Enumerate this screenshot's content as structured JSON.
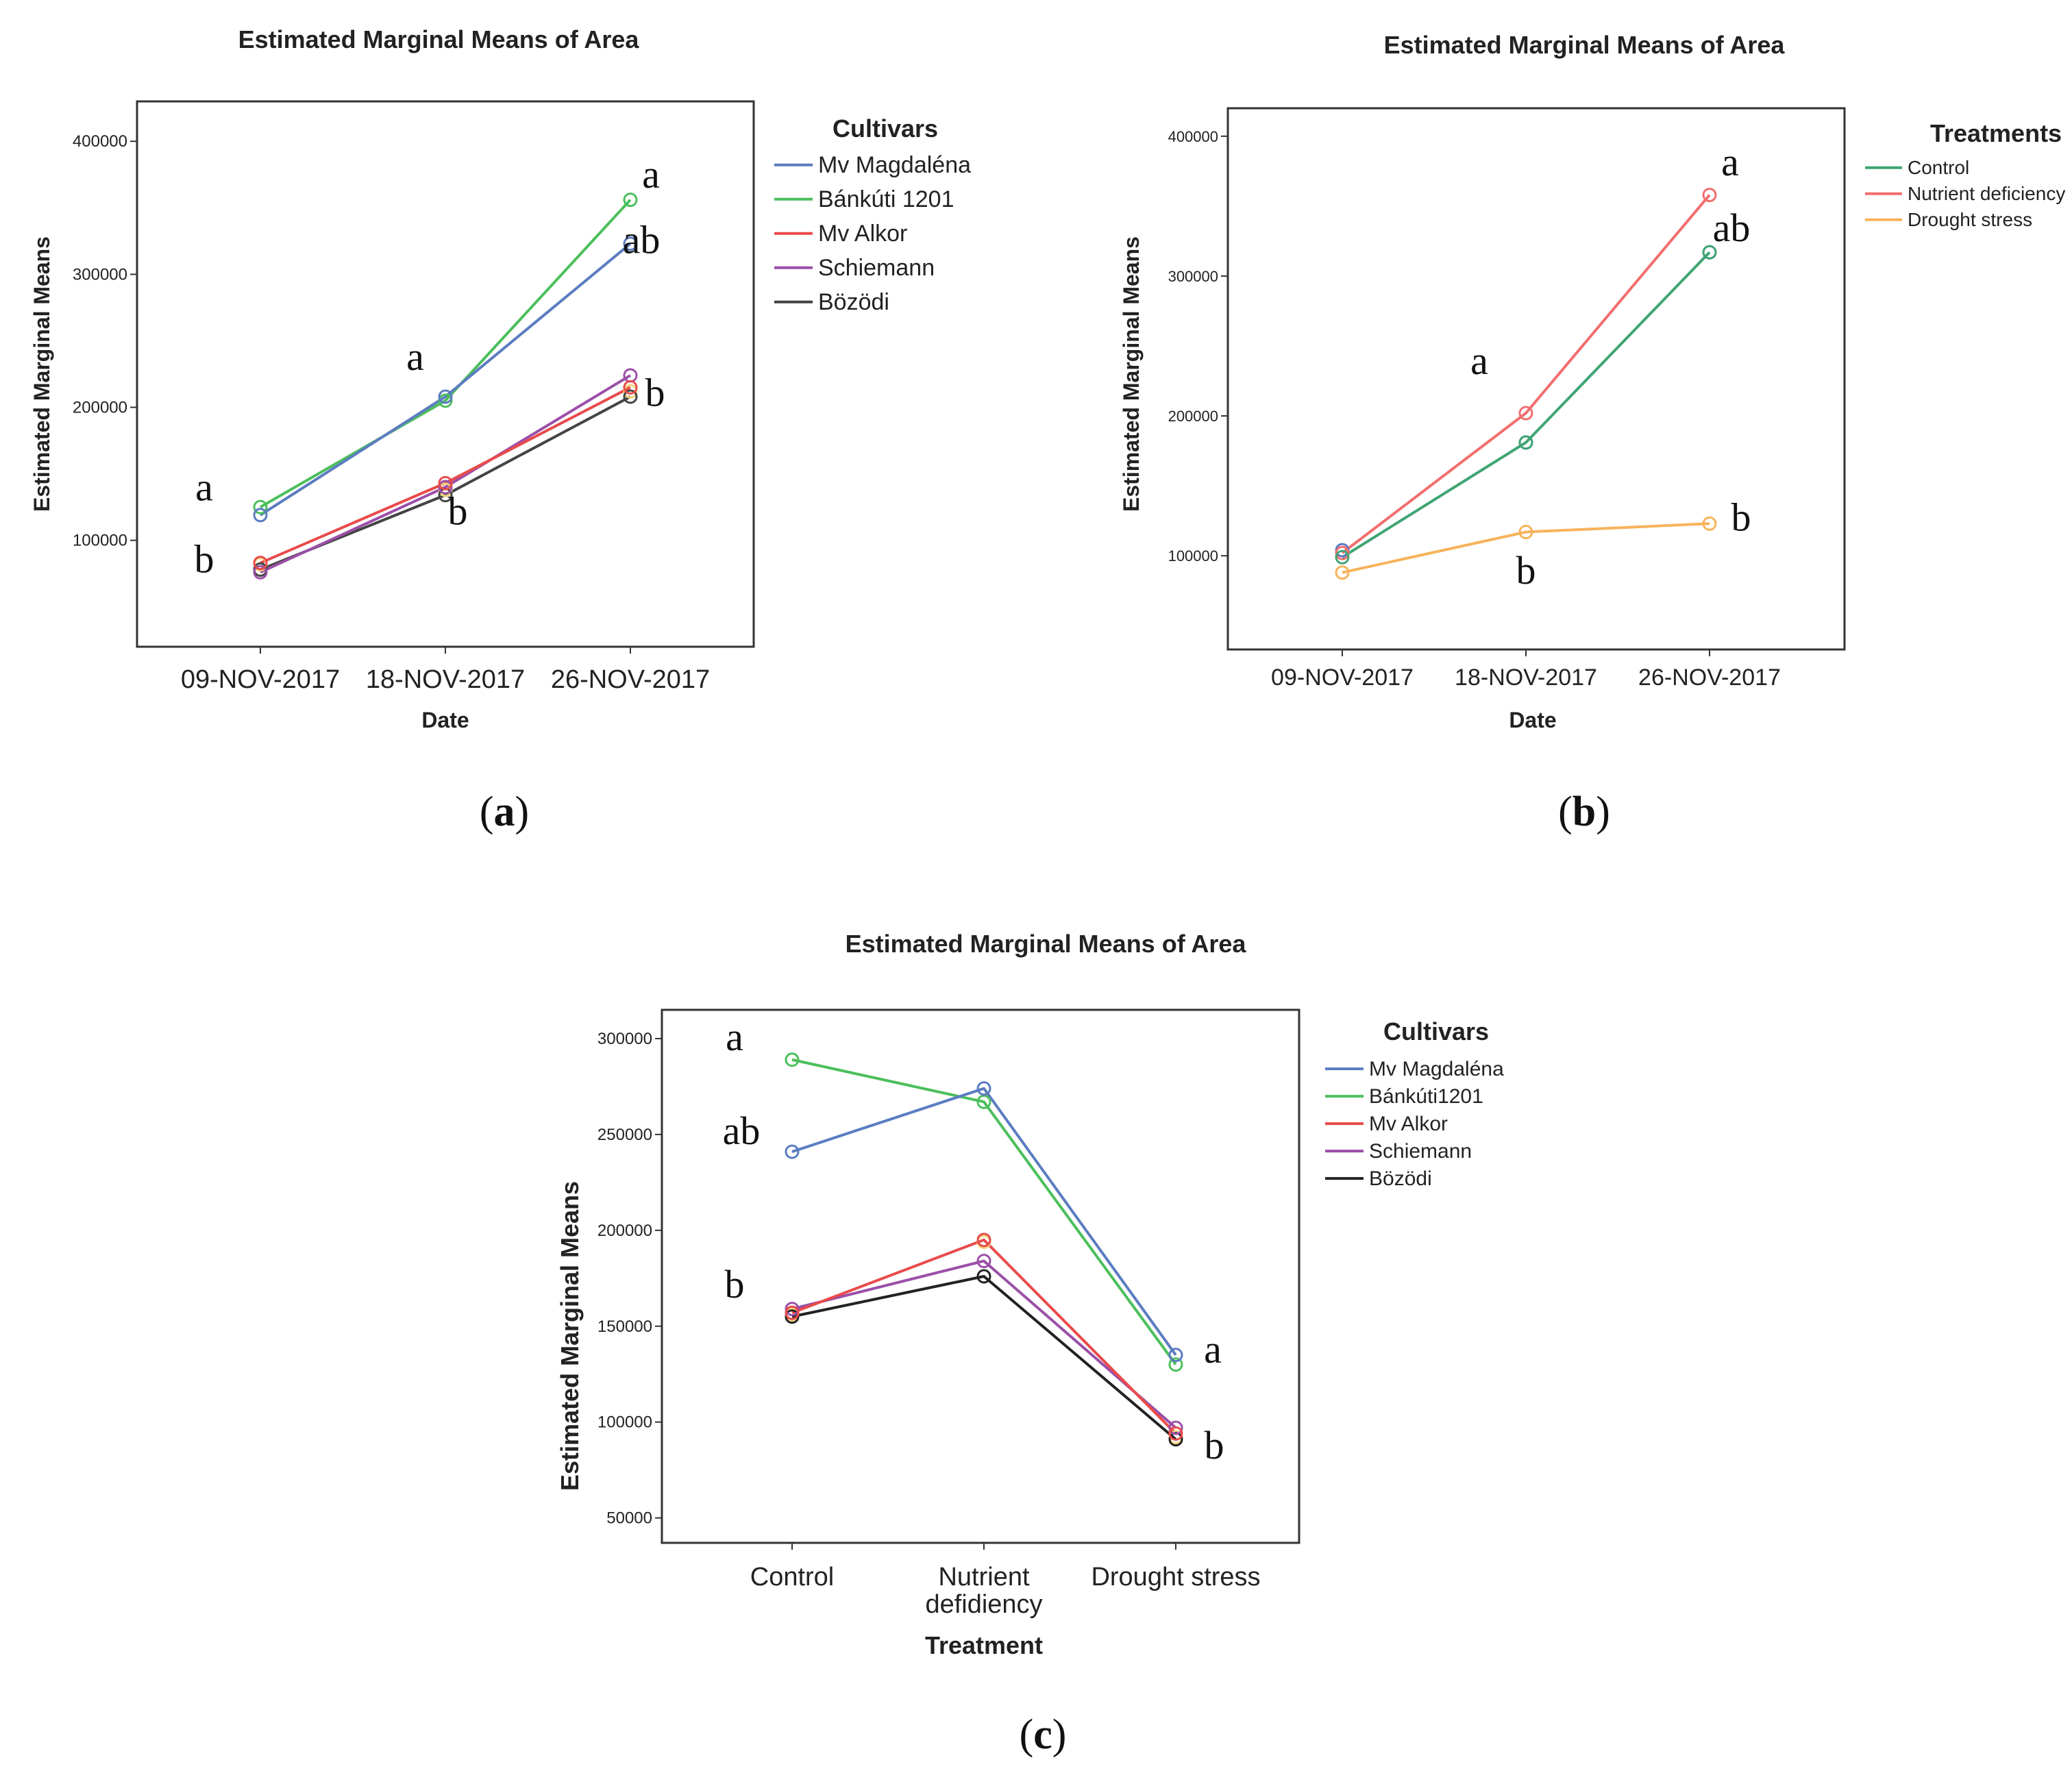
{
  "chart_data": [
    {
      "id": "a",
      "type": "line",
      "title": "Estimated Marginal Means of Area",
      "xlabel": "Date",
      "ylabel": "Estimated Marginal Means",
      "categories": [
        "09-NOV-2017",
        "18-NOV-2017",
        "26-NOV-2017"
      ],
      "ylim": [
        20000,
        430000
      ],
      "yticks": [
        100000,
        200000,
        300000,
        400000
      ],
      "legend_title": "Cultivars",
      "legend_position": "right",
      "series": [
        {
          "name": "Mv Magdaléna",
          "color": "#5B7CC0",
          "values": [
            119000,
            208000,
            323000
          ]
        },
        {
          "name": "Bánkúti 1201",
          "color": "#4CBF5C",
          "values": [
            125000,
            205000,
            356000
          ]
        },
        {
          "name": "Mv Alkor",
          "color": "#E84B4B",
          "values": [
            83000,
            143000,
            215000
          ]
        },
        {
          "name": "Schiemann",
          "color": "#9B4FA8",
          "values": [
            76000,
            140000,
            224000
          ]
        },
        {
          "name": "Bözödi",
          "color": "#444444",
          "values": [
            78000,
            134000,
            208000
          ]
        }
      ],
      "extra_markers": [
        {
          "color": "#F2D27A",
          "values": [
            82000,
            138000,
            212000
          ]
        }
      ],
      "annotations": [
        {
          "text": "a",
          "cat": 0,
          "y": 130000,
          "dx": -82
        },
        {
          "text": "b",
          "cat": 0,
          "y": 76000,
          "dx": -82
        },
        {
          "text": "a",
          "cat": 1,
          "y": 228000,
          "dx": -44
        },
        {
          "text": "b",
          "cat": 1,
          "y": 112000,
          "dx": 18
        },
        {
          "text": "a",
          "cat": 2,
          "y": 365000,
          "dx": 30
        },
        {
          "text": "ab",
          "cat": 2,
          "y": 316000,
          "dx": 16
        },
        {
          "text": "b",
          "cat": 2,
          "y": 201000,
          "dx": 36
        }
      ],
      "caption": "(a)"
    },
    {
      "id": "b",
      "type": "line",
      "title": "Estimated Marginal Means of Area",
      "xlabel": "Date",
      "ylabel": "Estimated Marginal Means",
      "categories": [
        "09-NOV-2017",
        "18-NOV-2017",
        "26-NOV-2017"
      ],
      "ylim": [
        33000,
        420000
      ],
      "yticks": [
        100000,
        200000,
        300000,
        400000
      ],
      "legend_title": "Treatments",
      "legend_position": "right",
      "series": [
        {
          "name": "Control",
          "color": "#3FA574",
          "values": [
            99000,
            181000,
            317000
          ]
        },
        {
          "name": "Nutrient deficiency",
          "color": "#F26E6E",
          "values": [
            102000,
            202000,
            358000
          ]
        },
        {
          "name": "Drought stress",
          "color": "#F7B35A",
          "values": [
            88000,
            117000,
            123000
          ]
        }
      ],
      "extra_markers": [
        {
          "color": "#5B7CC0",
          "values": [
            104000,
            181000,
            317000
          ]
        }
      ],
      "annotations": [
        {
          "text": "a",
          "cat": 1,
          "y": 230000,
          "dx": -68
        },
        {
          "text": "b",
          "cat": 1,
          "y": 80000,
          "dx": 0
        },
        {
          "text": "a",
          "cat": 2,
          "y": 372000,
          "dx": 30
        },
        {
          "text": "ab",
          "cat": 2,
          "y": 325000,
          "dx": 32
        },
        {
          "text": "b",
          "cat": 2,
          "y": 118000,
          "dx": 46
        }
      ],
      "caption": "(b)"
    },
    {
      "id": "c",
      "type": "line",
      "title": "Estimated Marginal Means of Area",
      "xlabel": "Treatment",
      "ylabel": "Estimated Marginal Means",
      "categories": [
        "Control",
        "Nutrient defidiency",
        "Drought stress"
      ],
      "ylim": [
        37000,
        315000
      ],
      "yticks": [
        50000,
        100000,
        150000,
        200000,
        250000,
        300000
      ],
      "legend_title": "Cultivars",
      "legend_position": "right",
      "series": [
        {
          "name": "Mv Magdaléna",
          "color": "#5B7CC0",
          "values": [
            241000,
            274000,
            135000
          ]
        },
        {
          "name": "Bánkúti1201",
          "color": "#4CBF5C",
          "values": [
            289000,
            267000,
            130000
          ]
        },
        {
          "name": "Mv Alkor",
          "color": "#E84B4B",
          "values": [
            157000,
            195000,
            94000
          ]
        },
        {
          "name": "Schiemann",
          "color": "#9B4FA8",
          "values": [
            159000,
            184000,
            97000
          ]
        },
        {
          "name": "Bözödi",
          "color": "#222222",
          "values": [
            155000,
            176000,
            91000
          ]
        }
      ],
      "extra_markers": [
        {
          "color": "#F2D27A",
          "values": [
            156000,
            194000,
            92000
          ]
        }
      ],
      "annotations": [
        {
          "text": "a",
          "cat": 0,
          "y": 294000,
          "dx": -84
        },
        {
          "text": "ab",
          "cat": 0,
          "y": 245000,
          "dx": -74
        },
        {
          "text": "b",
          "cat": 0,
          "y": 165000,
          "dx": -84
        },
        {
          "text": "a",
          "cat": 2,
          "y": 131000,
          "dx": 54
        },
        {
          "text": "b",
          "cat": 2,
          "y": 81000,
          "dx": 56
        }
      ],
      "caption": "(c)"
    }
  ]
}
